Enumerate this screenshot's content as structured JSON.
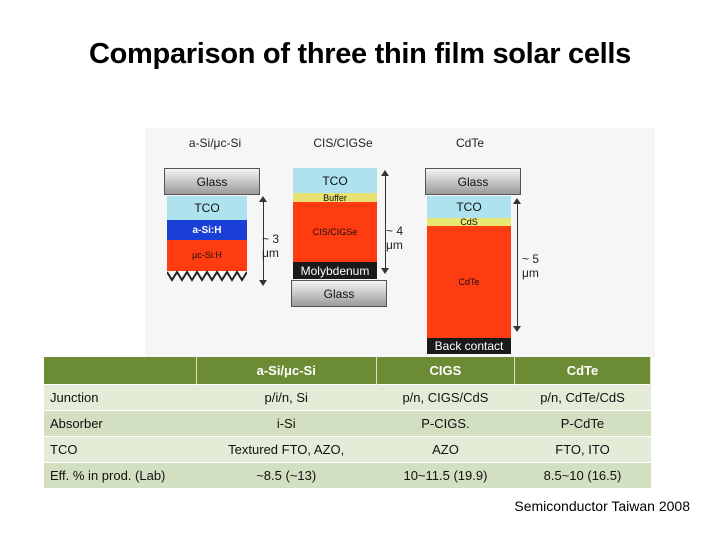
{
  "title": "Comparison of three thin film solar cells",
  "figure": {
    "columns": [
      "a-Si/μc-Si",
      "CIS/CIGSe",
      "CdTe"
    ],
    "asi": {
      "glass": "Glass",
      "tco": "TCO",
      "asih": "a-Si:H",
      "ucsih": "μc-Si:H",
      "thickness": "~ 3\nμm"
    },
    "cigs": {
      "tco": "TCO",
      "buffer": "Buffer",
      "absorber": "CIS/CIGSe",
      "moly": "Molybdenum",
      "glass": "Glass",
      "thickness": "~ 4\nμm"
    },
    "cdte": {
      "glass": "Glass",
      "tco": "TCO",
      "cds": "CdS",
      "absorber": "CdTe",
      "back": "Back contact",
      "thickness": "~ 5\nμm"
    }
  },
  "table": {
    "headers": [
      "",
      "a-Si/μc-Si",
      "CIGS",
      "CdTe"
    ],
    "rows": [
      [
        "Junction",
        "p/i/n, Si",
        "p/n, CIGS/CdS",
        "p/n, CdTe/CdS"
      ],
      [
        "Absorber",
        "i-Si",
        "P-CIGS.",
        "P-CdTe"
      ],
      [
        "TCO",
        "Textured FTO, AZO,",
        "AZO",
        "FTO, ITO"
      ],
      [
        "Eff. %  in prod. (Lab)",
        "~8.5 (~13)",
        "10~11.5 (19.9)",
        "8.5~10 (16.5)"
      ]
    ]
  },
  "source": "Semiconductor Taiwan 2008"
}
